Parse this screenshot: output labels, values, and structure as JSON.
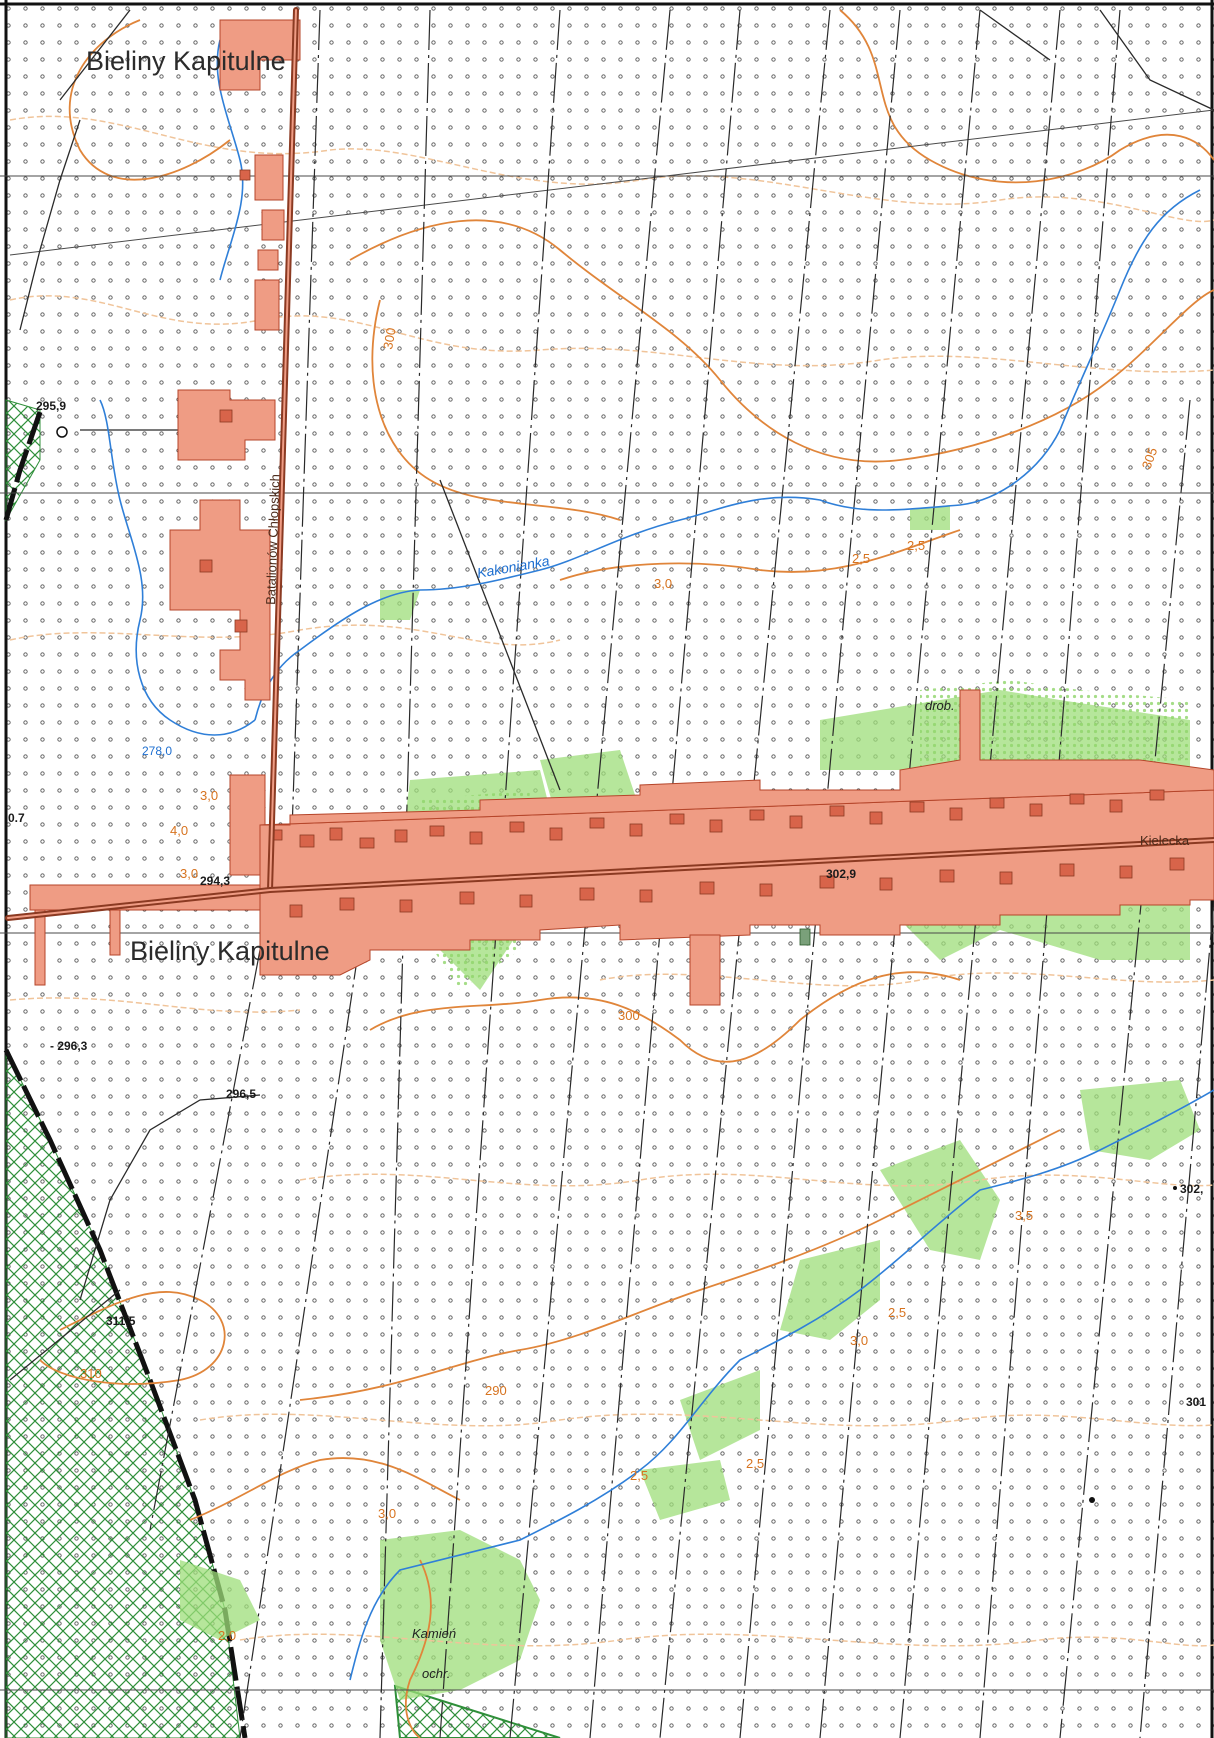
{
  "map": {
    "place_labels": [
      {
        "id": "place-top",
        "text": "Bieliny Kapitulne"
      },
      {
        "id": "place-middle",
        "text": "Bieliny Kapitulne"
      }
    ],
    "street_labels": [
      {
        "id": "street-vertical",
        "text": "Batalionów Chłopskich"
      },
      {
        "id": "street-kielecka",
        "text": "Kielecka"
      }
    ],
    "river_label": "Kakonianka",
    "misc_labels": {
      "drob": "drob.",
      "kamien": "Kamień",
      "ochr": "ochr."
    },
    "spot_heights": [
      "295,9",
      "278,0",
      "0.7",
      "294,3",
      "302,9",
      "- 296,3",
      "296,5",
      "311,5",
      "302,",
      "301"
    ],
    "contour_labels": [
      "300",
      "305",
      "3,0",
      "2,5",
      "2,5",
      "4,0",
      "3,0",
      "3,0",
      "300",
      "3,5",
      "2,5",
      "3,0",
      "290",
      "3,0",
      "2,5",
      "2,5",
      "2,0",
      "310"
    ],
    "colors": {
      "background": "#ffffff",
      "dots": "#5a5a5a",
      "contour": "#e0853a",
      "contour_minor": "#f0c49a",
      "settlement_fill": "#ef9c84",
      "settlement_stroke": "#b5452a",
      "road": "#8b3a22",
      "river": "#2f7fd8",
      "green": "#8fd46a",
      "forest_hatch": "#2f8f3a",
      "boundary": "#111111",
      "grid": "#555555"
    }
  }
}
